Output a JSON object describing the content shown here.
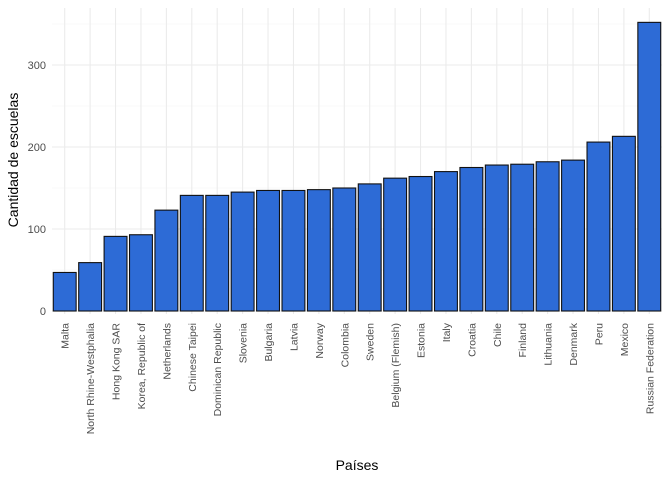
{
  "chart_data": {
    "type": "bar",
    "title": "",
    "xlabel": "Países",
    "ylabel": "Cantidad de escuelas",
    "categories": [
      "Malta",
      "North Rhine-Westphalia",
      "Hong Kong SAR",
      "Korea, Republic of",
      "Netherlands",
      "Chinese Taipei",
      "Dominican Republic",
      "Slovenia",
      "Bulgaria",
      "Latvia",
      "Norway",
      "Colombia",
      "Sweden",
      "Belgium (Flemish)",
      "Estonia",
      "Italy",
      "Croatia",
      "Chile",
      "Finland",
      "Lithuania",
      "Denmark",
      "Peru",
      "Mexico",
      "Russian Federation"
    ],
    "values": [
      47,
      59,
      91,
      93,
      123,
      141,
      141,
      145,
      147,
      147,
      148,
      150,
      155,
      162,
      164,
      170,
      175,
      178,
      179,
      182,
      184,
      206,
      213,
      352
    ],
    "ylim": [
      0,
      370
    ],
    "yticks": [
      0,
      100,
      200,
      300
    ],
    "bar_color": "#2d6bd6",
    "bar_outline": "#111111",
    "grid": true,
    "legend": "none"
  }
}
